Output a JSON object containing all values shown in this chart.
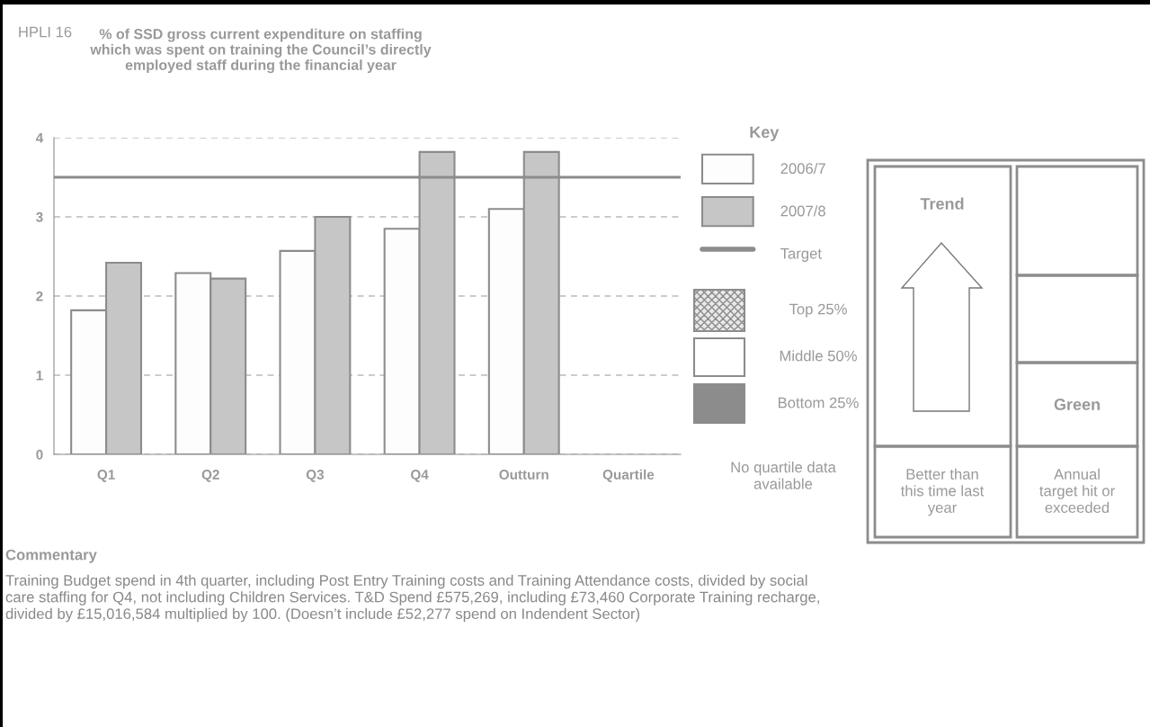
{
  "chart_data": {
    "type": "bar",
    "title": "% of SSD gross current expenditure on staffing\nwhich was spent on training the Council’s directly\nemployed staff during the financial year",
    "categories": [
      "Q1",
      "Q2",
      "Q3",
      "Q4",
      "Outturn",
      "Quartile"
    ],
    "series": [
      {
        "name": "2006/7",
        "color": "#fdfdfd",
        "values": [
          1.82,
          2.29,
          2.57,
          2.85,
          3.1,
          null
        ]
      },
      {
        "name": "2007/8",
        "color": "#c6c6c6",
        "values": [
          2.42,
          2.22,
          3.0,
          3.82,
          3.82,
          null
        ]
      }
    ],
    "ylim": [
      0,
      4
    ],
    "yticks": [
      0,
      1,
      2,
      3,
      4
    ],
    "grid": "y",
    "legend": "right",
    "legend_title": "Key",
    "ref_lines": [
      {
        "axis": "y",
        "value": 3.5,
        "label": "Target",
        "color": "#8c8c8c"
      }
    ],
    "annotations": [
      "HPLI 16",
      "Top 25%",
      "Middle 50%",
      "Bottom 25%",
      "No quartile data\navailable",
      "Trend",
      "Green",
      "Better than\nthis time last\nyear",
      "Annual\ntarget hit or\nexceeded",
      "Commentary",
      "Training Budget spend in 4th quarter, including Post Entry Training costs and Training Attendance costs, divided by social\ncare staffing for Q4, not including Children Services. T&D Spend £575,269, including £73,460 Corporate Training recharge,\ndivided by £15,016,584 multiplied by 100. (Doesn’t include £52,277 spend on Indendent Sector)"
    ]
  }
}
